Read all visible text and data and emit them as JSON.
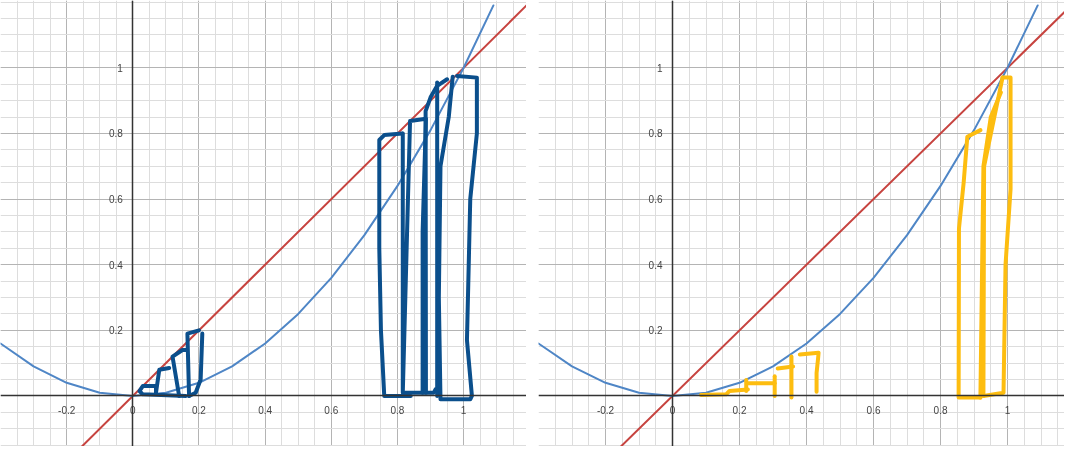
{
  "chart_data": [
    {
      "type": "line",
      "xlim": [
        -0.4,
        1.19
      ],
      "ylim": [
        -0.154,
        1.205
      ],
      "xticks": [
        -0.2,
        0,
        0.2,
        0.4,
        0.6,
        0.8,
        1
      ],
      "yticks": [
        0.2,
        0.4,
        0.6,
        0.8,
        1
      ],
      "grid": true,
      "line_style": "solid",
      "marker": "none",
      "series": [
        {
          "color": "#c74440",
          "x": [
            -0.154,
            1.19
          ],
          "values": [
            -0.154,
            1.19
          ]
        },
        {
          "color": "#4f86c6",
          "x": [
            -0.4,
            -0.3,
            -0.2,
            -0.1,
            0,
            0.1,
            0.2,
            0.3,
            0.4,
            0.5,
            0.6,
            0.7,
            0.8,
            0.9,
            1,
            1.09
          ],
          "values": [
            0.16,
            0.09,
            0.04,
            0.01,
            0,
            0.01,
            0.04,
            0.09,
            0.16,
            0.25,
            0.36,
            0.49,
            0.64,
            0.81,
            1,
            1.19
          ]
        },
        {
          "color": "#0b4f8c",
          "x": [
            0.16,
            0.03,
            0.02,
            0.03,
            0.07,
            0.07
          ],
          "values": [
            0.0,
            0.005,
            0.015,
            0.03,
            0.03,
            0.01
          ]
        },
        {
          "color": "#0b4f8c",
          "x": [
            0.07,
            0.08,
            0.11
          ],
          "values": [
            0.01,
            0.08,
            0.085
          ]
        },
        {
          "color": "#0b4f8c",
          "x": [
            0.14,
            0.12,
            0.15,
            0.16
          ],
          "values": [
            0.0,
            0.12,
            0.14,
            0.14
          ]
        },
        {
          "color": "#0b4f8c",
          "x": [
            0.17,
            0.165,
            0.2
          ],
          "values": [
            0.0,
            0.19,
            0.2
          ]
        },
        {
          "color": "#0b4f8c",
          "x": [
            0.21,
            0.205,
            0.19,
            0.17
          ],
          "values": [
            0.19,
            0.05,
            0.01,
            0.0
          ]
        },
        {
          "color": "#0b4f8c",
          "x": [
            0.84,
            0.76,
            0.75,
            0.745,
            0.745,
            0.76,
            0.815
          ],
          "values": [
            0.0,
            0.0,
            0.2,
            0.45,
            0.78,
            0.795,
            0.8
          ]
        },
        {
          "color": "#0b4f8c",
          "x": [
            0.816,
            0.816,
            0.838,
            0.886,
            0.876,
            0.876,
            0.816
          ],
          "values": [
            0.8,
            0.01,
            0.838,
            0.845,
            0.5,
            0.01,
            0.01
          ]
        },
        {
          "color": "#0b4f8c",
          "x": [
            0.876,
            0.91,
            0.915
          ],
          "values": [
            0.01,
            0.01,
            0.02
          ]
        },
        {
          "color": "#0b4f8c",
          "x": [
            0.886,
            0.885,
            0.9,
            0.92,
            0.95
          ],
          "values": [
            0.01,
            0.868,
            0.91,
            0.945,
            0.965
          ]
        },
        {
          "color": "#0b4f8c",
          "x": [
            0.92,
            0.92
          ],
          "values": [
            0.955,
            0.0
          ]
        },
        {
          "color": "#0b4f8c",
          "x": [
            0.967,
            0.955,
            0.93,
            0.925,
            0.93,
            1.02,
            1.025,
            1.01,
            1.02,
            1.04,
            1.04,
            0.98
          ],
          "values": [
            0.973,
            0.85,
            0.7,
            0.3,
            -0.01,
            -0.01,
            0.0,
            0.17,
            0.6,
            0.8,
            0.97,
            0.975
          ]
        }
      ]
    },
    {
      "type": "line",
      "xlim": [
        -0.4,
        1.17
      ],
      "ylim": [
        -0.154,
        1.205
      ],
      "xticks": [
        -0.2,
        0,
        0.2,
        0.4,
        0.6,
        0.8,
        1
      ],
      "yticks": [
        0.2,
        0.4,
        0.6,
        0.8,
        1
      ],
      "grid": true,
      "line_style": "solid",
      "marker": "none",
      "series": [
        {
          "color": "#c74440",
          "x": [
            -0.154,
            1.17
          ],
          "values": [
            -0.154,
            1.17
          ]
        },
        {
          "color": "#4f86c6",
          "x": [
            -0.4,
            -0.3,
            -0.2,
            -0.1,
            0,
            0.1,
            0.2,
            0.3,
            0.4,
            0.5,
            0.6,
            0.7,
            0.8,
            0.9,
            1,
            1.09
          ],
          "values": [
            0.16,
            0.09,
            0.04,
            0.01,
            0,
            0.01,
            0.04,
            0.09,
            0.16,
            0.25,
            0.36,
            0.49,
            0.64,
            0.81,
            1,
            1.19
          ]
        },
        {
          "color": "#fdbd10",
          "x": [
            0.085,
            0.16,
            0.17,
            0.225
          ],
          "values": [
            0.003,
            0.005,
            0.015,
            0.02
          ]
        },
        {
          "color": "#fdbd10",
          "x": [
            0.22,
            0.22
          ],
          "values": [
            0.015,
            0.049
          ]
        },
        {
          "color": "#fdbd10",
          "x": [
            0.225,
            0.305
          ],
          "values": [
            0.039,
            0.039
          ]
        },
        {
          "color": "#fdbd10",
          "x": [
            0.305,
            0.305
          ],
          "values": [
            0.06,
            0.0
          ]
        },
        {
          "color": "#fdbd10",
          "x": [
            0.314,
            0.36
          ],
          "values": [
            0.084,
            0.09
          ]
        },
        {
          "color": "#fdbd10",
          "x": [
            0.355,
            0.355
          ],
          "values": [
            0.12,
            -0.005
          ]
        },
        {
          "color": "#fdbd10",
          "x": [
            0.38,
            0.436,
            0.435,
            0.43,
            0.43
          ],
          "values": [
            0.126,
            0.132,
            0.12,
            0.07,
            0.013
          ]
        },
        {
          "color": "#fdbd10",
          "x": [
            0.919,
            0.854,
            0.855,
            0.869,
            0.88,
            0.919
          ],
          "values": [
            -0.005,
            -0.005,
            0.51,
            0.65,
            0.79,
            0.81
          ]
        },
        {
          "color": "#fdbd10",
          "x": [
            0.919,
            0.928,
            0.95,
            0.98
          ],
          "values": [
            -0.005,
            0.7,
            0.85,
            0.925
          ]
        },
        {
          "color": "#fdbd10",
          "x": [
            0.985,
            1.009,
            1.009,
            0.994,
            0.988,
            0.928
          ],
          "values": [
            0.97,
            0.97,
            0.63,
            0.4,
            0.01,
            0.0
          ]
        },
        {
          "color": "#fdbd10",
          "x": [
            0.928,
            0.93,
            0.985
          ],
          "values": [
            0.0,
            0.7,
            0.97
          ]
        }
      ]
    }
  ]
}
